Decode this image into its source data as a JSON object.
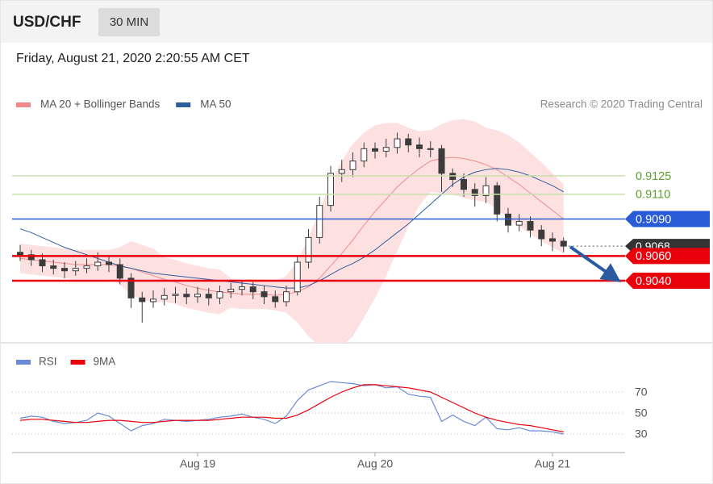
{
  "header": {
    "symbol": "USD/CHF",
    "timeframe": "30 MIN",
    "timestamp": "Friday, August 21, 2020 2:20:55 AM CET",
    "credit": "Research © 2020 Trading Central"
  },
  "chart_data": [
    {
      "type": "candlestick",
      "categories": [
        null,
        null,
        null,
        null,
        null,
        null,
        null,
        null,
        null,
        null,
        null,
        null,
        null,
        null,
        null,
        null,
        "Aug 19",
        null,
        null,
        null,
        null,
        null,
        null,
        null,
        null,
        null,
        null,
        null,
        null,
        null,
        null,
        null,
        "Aug 20",
        null,
        null,
        null,
        null,
        null,
        null,
        null,
        null,
        null,
        null,
        null,
        null,
        null,
        null,
        null,
        "Aug 21",
        null
      ],
      "open": [
        0.9063,
        0.9061,
        0.9057,
        0.9052,
        0.905,
        0.9048,
        0.905,
        0.9052,
        0.9055,
        0.9053,
        0.9042,
        0.9026,
        0.9023,
        0.9025,
        0.9028,
        0.9029,
        0.9027,
        0.9029,
        0.9026,
        0.9031,
        0.9033,
        0.9035,
        0.9031,
        0.9027,
        0.9023,
        0.9031,
        0.9055,
        0.9075,
        0.9101,
        0.9127,
        0.913,
        0.9137,
        0.9147,
        0.9145,
        0.9148,
        0.9155,
        0.915,
        0.9147,
        0.9147,
        0.9127,
        0.9122,
        0.9114,
        0.9109,
        0.9117,
        0.9094,
        0.9085,
        0.9088,
        0.9081,
        0.9074,
        0.9072
      ],
      "high": [
        0.9069,
        0.9065,
        0.9062,
        0.9057,
        0.9055,
        0.9056,
        0.9058,
        0.9063,
        0.906,
        0.9058,
        0.9046,
        0.9031,
        0.9032,
        0.9034,
        0.9035,
        0.9034,
        0.9035,
        0.9034,
        0.9036,
        0.9038,
        0.904,
        0.9039,
        0.9036,
        0.9032,
        0.9036,
        0.906,
        0.9082,
        0.9108,
        0.9133,
        0.9138,
        0.9144,
        0.9152,
        0.9152,
        0.9155,
        0.916,
        0.9159,
        0.9156,
        0.9153,
        0.915,
        0.9131,
        0.9127,
        0.9119,
        0.9124,
        0.912,
        0.9099,
        0.9094,
        0.9092,
        0.9085,
        0.9079,
        0.9075
      ],
      "low": [
        0.9056,
        0.9052,
        0.9047,
        0.9045,
        0.9042,
        0.9044,
        0.9046,
        0.9048,
        0.9047,
        0.9037,
        0.9018,
        0.9006,
        0.9018,
        0.902,
        0.9022,
        0.9021,
        0.9022,
        0.902,
        0.9021,
        0.9026,
        0.9028,
        0.9025,
        0.9021,
        0.9018,
        0.9019,
        0.9028,
        0.905,
        0.907,
        0.9096,
        0.912,
        0.9124,
        0.9132,
        0.9139,
        0.914,
        0.9143,
        0.9144,
        0.914,
        0.914,
        0.9112,
        0.9116,
        0.9108,
        0.91,
        0.9103,
        0.9088,
        0.9079,
        0.908,
        0.9075,
        0.9068,
        0.9064,
        0.9063
      ],
      "close": [
        0.9061,
        0.9057,
        0.9052,
        0.905,
        0.9048,
        0.905,
        0.9052,
        0.9055,
        0.9053,
        0.9042,
        0.9026,
        0.9023,
        0.9025,
        0.9028,
        0.9029,
        0.9027,
        0.9029,
        0.9026,
        0.9031,
        0.9033,
        0.9035,
        0.9031,
        0.9027,
        0.9023,
        0.9031,
        0.9055,
        0.9075,
        0.9101,
        0.9127,
        0.913,
        0.9137,
        0.9147,
        0.9145,
        0.9148,
        0.9155,
        0.915,
        0.9147,
        0.9147,
        0.9127,
        0.9122,
        0.9114,
        0.9109,
        0.9117,
        0.9094,
        0.9085,
        0.9088,
        0.9081,
        0.9074,
        0.9072,
        0.9068
      ],
      "candle_color": "#3c3c3c",
      "current_color": "#333333",
      "series": [
        {
          "name": "MA 20 + Bollinger Bands",
          "color": "#f08a8a",
          "band_color": "#fde1e1",
          "values": [
            0.9058,
            0.9057,
            0.9056,
            0.9055,
            0.9054,
            0.9053,
            0.9053,
            0.9053,
            0.9053,
            0.9052,
            0.905,
            0.9047,
            0.9044,
            0.9041,
            0.9039,
            0.9036,
            0.9034,
            0.9032,
            0.9031,
            0.903,
            0.9029,
            0.9029,
            0.9029,
            0.9028,
            0.9029,
            0.9031,
            0.9035,
            0.9042,
            0.9052,
            0.9062,
            0.9073,
            0.9085,
            0.9096,
            0.9106,
            0.9116,
            0.9124,
            0.9131,
            0.9137,
            0.9139,
            0.914,
            0.9139,
            0.9137,
            0.9134,
            0.913,
            0.9124,
            0.9118,
            0.9111,
            0.9104,
            0.9097,
            0.909
          ],
          "upper": [
            0.907,
            0.9069,
            0.9068,
            0.9067,
            0.9066,
            0.9065,
            0.9065,
            0.9065,
            0.9065,
            0.9067,
            0.9072,
            0.9069,
            0.9066,
            0.9059,
            0.9057,
            0.9054,
            0.9052,
            0.905,
            0.9049,
            0.9042,
            0.9041,
            0.9041,
            0.9041,
            0.904,
            0.9044,
            0.9056,
            0.9075,
            0.9097,
            0.912,
            0.9137,
            0.9151,
            0.916,
            0.9166,
            0.9168,
            0.9168,
            0.9164,
            0.9161,
            0.9162,
            0.9167,
            0.917,
            0.9171,
            0.9169,
            0.9164,
            0.9162,
            0.9158,
            0.9152,
            0.9144,
            0.9136,
            0.9127,
            0.9118
          ],
          "lower": [
            0.9046,
            0.9045,
            0.9044,
            0.9043,
            0.9042,
            0.9041,
            0.9041,
            0.9041,
            0.9041,
            0.9037,
            0.9028,
            0.9025,
            0.9022,
            0.9023,
            0.9021,
            0.9018,
            0.9016,
            0.9014,
            0.9013,
            0.9018,
            0.9017,
            0.9017,
            0.9017,
            0.9016,
            0.9014,
            0.9006,
            0.8995,
            0.8987,
            0.8984,
            0.8987,
            0.8995,
            0.901,
            0.9026,
            0.9044,
            0.9064,
            0.9084,
            0.9101,
            0.9112,
            0.9111,
            0.911,
            0.9107,
            0.9105,
            0.9104,
            0.9098,
            0.909,
            0.9084,
            0.9078,
            0.9072,
            0.9067,
            0.9062
          ]
        },
        {
          "name": "MA 50",
          "color": "#2f5d9e",
          "values": [
            0.9082,
            0.9079,
            0.9075,
            0.9071,
            0.9067,
            0.9064,
            0.9061,
            0.9058,
            0.9055,
            0.9052,
            0.905,
            0.9048,
            0.9046,
            0.9045,
            0.9044,
            0.9043,
            0.9042,
            0.9041,
            0.904,
            0.9039,
            0.9038,
            0.9037,
            0.9036,
            0.9035,
            0.9034,
            0.9034,
            0.9036,
            0.904,
            0.9045,
            0.905,
            0.9054,
            0.9059,
            0.9065,
            0.9072,
            0.9079,
            0.9086,
            0.9094,
            0.9102,
            0.911,
            0.9118,
            0.9124,
            0.9128,
            0.913,
            0.9131,
            0.913,
            0.9128,
            0.9125,
            0.9121,
            0.9117,
            0.9112
          ]
        }
      ],
      "levels": [
        {
          "value": 0.9125,
          "color": "#c8e0ab",
          "text_color": "#5aa02c",
          "boxed": false
        },
        {
          "value": 0.911,
          "label": "0.9110",
          "color": "#c8e0ab",
          "text_color": "#5aa02c",
          "boxed": false
        },
        {
          "value": 0.909,
          "label": "0.9090",
          "color": "#2a5bd7",
          "text_color": "#ffffff",
          "boxed": true
        },
        {
          "value": 0.906,
          "label": "0.9060",
          "color": "#e8000b",
          "text_color": "#ffffff",
          "boxed": true
        },
        {
          "value": 0.904,
          "label": "0.9040",
          "color": "#e8000b",
          "text_color": "#ffffff",
          "boxed": true
        }
      ],
      "ylim": [
        0.899,
        0.9175
      ]
    },
    {
      "type": "line",
      "series": [
        {
          "name": "RSI",
          "color": "#6a8ad8",
          "values": [
            45,
            47,
            46,
            42,
            40,
            41,
            43,
            50,
            47,
            40,
            33,
            38,
            40,
            44,
            43,
            42,
            43,
            44,
            46,
            47,
            49,
            46,
            44,
            40,
            47,
            62,
            72,
            76,
            80,
            79,
            78,
            76,
            77,
            74,
            75,
            68,
            66,
            65,
            42,
            48,
            42,
            38,
            46,
            35,
            34,
            36,
            33,
            33,
            32,
            30
          ]
        },
        {
          "name": "9MA",
          "color": "#e8000b",
          "values": [
            43,
            44,
            44,
            43,
            42,
            41,
            41,
            42,
            43,
            43,
            42,
            41,
            41,
            42,
            43,
            43,
            43,
            43,
            44,
            45,
            46,
            46,
            46,
            45,
            45,
            48,
            53,
            59,
            65,
            70,
            74,
            77,
            77,
            76,
            75,
            74,
            72,
            70,
            65,
            60,
            55,
            50,
            46,
            43,
            41,
            39,
            38,
            36,
            34,
            32
          ]
        }
      ],
      "ylim": [
        10,
        110
      ],
      "yticks": [
        30,
        50,
        70
      ],
      "grid": true
    }
  ]
}
